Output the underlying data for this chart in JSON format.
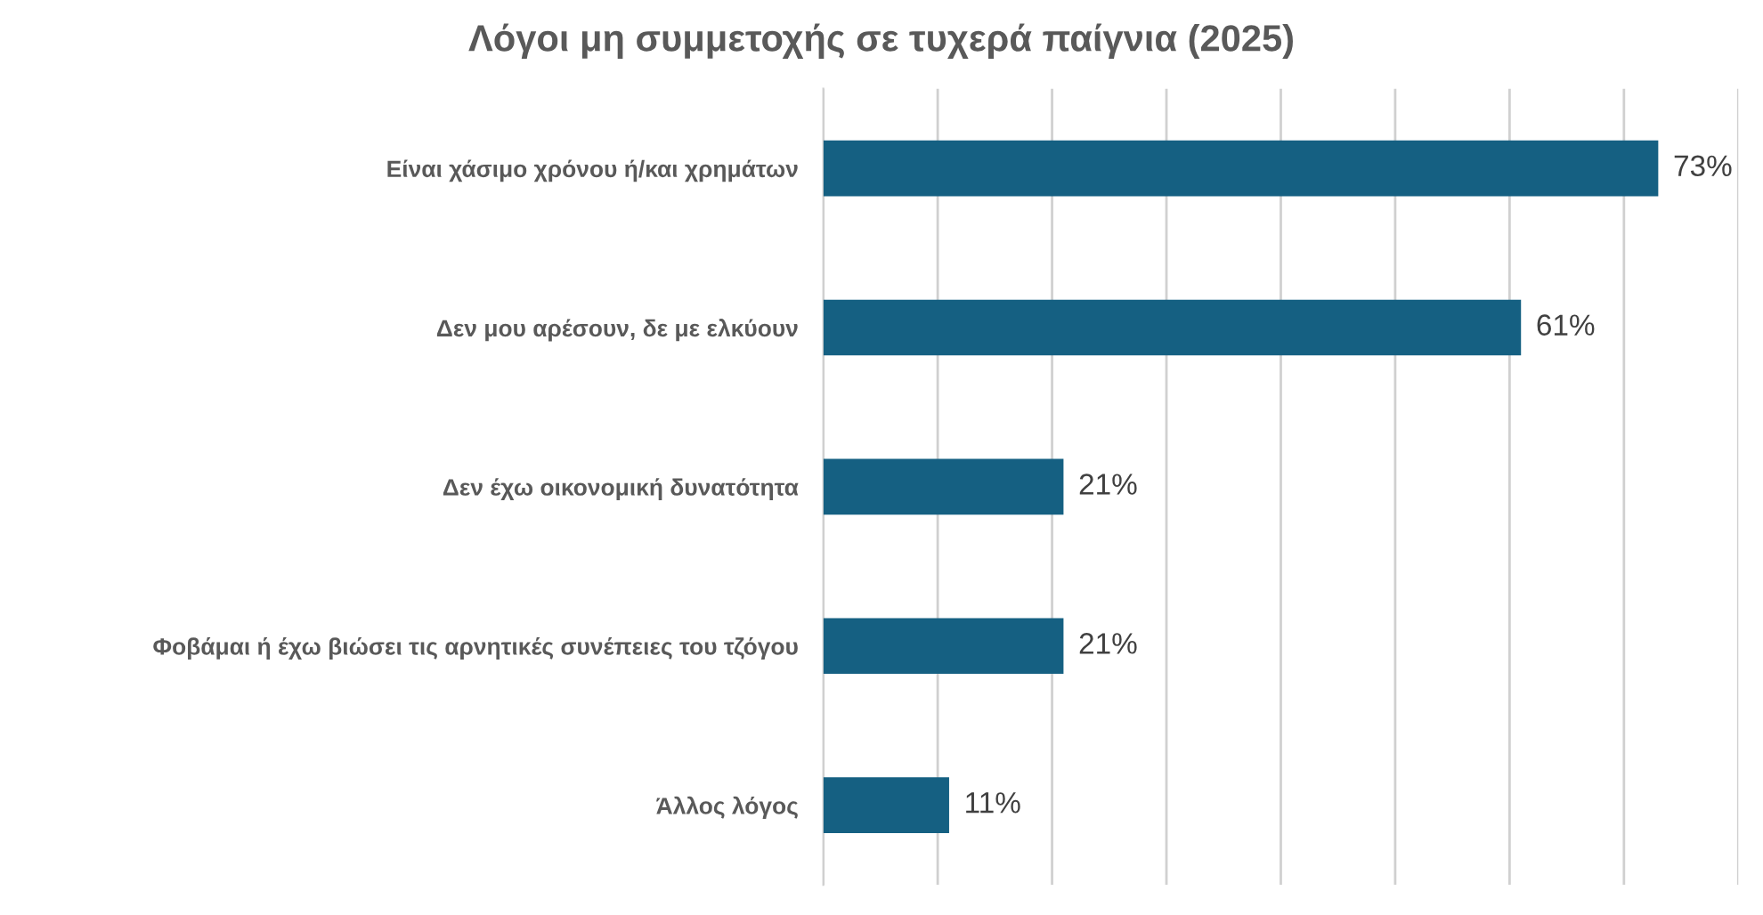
{
  "chart_data": {
    "type": "bar",
    "orientation": "horizontal",
    "title": "Λόγοι μη συμμετοχής σε τυχερά παίγνια (2025)",
    "categories": [
      "Είναι χάσιμο χρόνου ή/και χρημάτων",
      "Δεν μου αρέσουν, δε με ελκύουν",
      "Δεν έχω οικονομική δυνατότητα",
      "Φοβάμαι ή έχω βιώσει τις αρνητικές συνέπειες του τζόγου",
      "Άλλος λόγος"
    ],
    "values": [
      73,
      61,
      21,
      21,
      11
    ],
    "value_labels": [
      "73%",
      "61%",
      "21%",
      "21%",
      "11%"
    ],
    "color": "#156082",
    "xlim": [
      0,
      80
    ],
    "xticks": [
      {
        "value": 0,
        "label": null
      },
      {
        "value": 10,
        "label": null
      },
      {
        "value": 20,
        "label": null
      },
      {
        "value": 30,
        "label": null
      },
      {
        "value": 40,
        "label": null
      },
      {
        "value": 50,
        "label": null
      },
      {
        "value": 60,
        "label": null
      },
      {
        "value": 70,
        "label": null
      },
      {
        "value": 80,
        "label": null
      }
    ],
    "tick_labels": "y",
    "grid": "x",
    "legend": false
  }
}
